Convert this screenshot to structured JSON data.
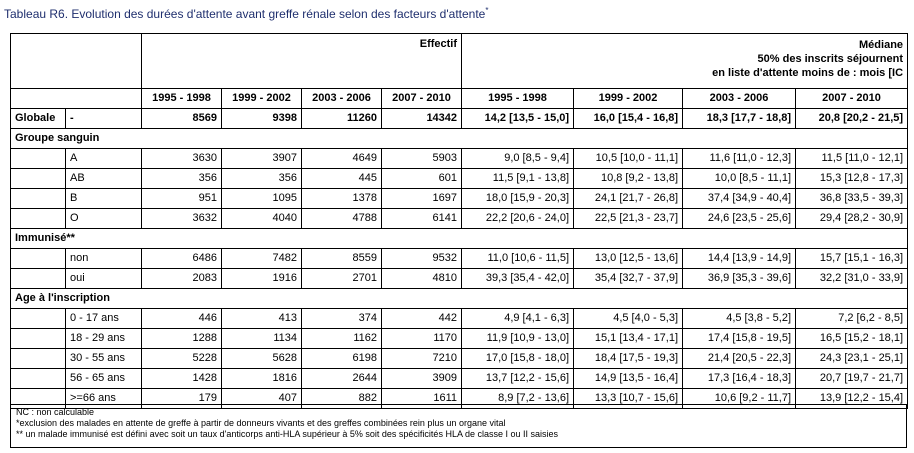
{
  "title": "Tableau R6. Evolution des durées d'attente avant greffe rénale selon des facteurs d'attente",
  "title_sup": "*",
  "header": {
    "effectif": "Effectif",
    "mediane": [
      "Médiane",
      "50% des inscrits séjournent",
      "en liste d'attente moins de : mois [IC"
    ],
    "periods": [
      "1995 - 1998",
      "1999 - 2002",
      "2003 - 2006",
      "2007 - 2010"
    ]
  },
  "globale": {
    "label": "Globale",
    "sub": "-",
    "eff": [
      "8569",
      "9398",
      "11260",
      "14342"
    ],
    "med": [
      "14,2 [13,5 - 15,0]",
      "16,0 [15,4 - 16,8]",
      "18,3 [17,7 - 18,8]",
      "20,8 [20,2 - 21,5]"
    ]
  },
  "sections": [
    {
      "label": "Groupe sanguin",
      "rows": [
        {
          "label": "A",
          "eff": [
            "3630",
            "3907",
            "4649",
            "5903"
          ],
          "med": [
            "9,0 [8,5 - 9,4]",
            "10,5 [10,0 - 11,1]",
            "11,6 [11,0 - 12,3]",
            "11,5 [11,0 - 12,1]"
          ]
        },
        {
          "label": "AB",
          "eff": [
            "356",
            "356",
            "445",
            "601"
          ],
          "med": [
            "11,5 [9,1 - 13,8]",
            "10,8 [9,2 - 13,8]",
            "10,0 [8,5 - 11,1]",
            "15,3 [12,8 - 17,3]"
          ]
        },
        {
          "label": "B",
          "eff": [
            "951",
            "1095",
            "1378",
            "1697"
          ],
          "med": [
            "18,0 [15,9 - 20,3]",
            "24,1 [21,7 - 26,8]",
            "37,4 [34,9 - 40,4]",
            "36,8 [33,5 - 39,3]"
          ]
        },
        {
          "label": "O",
          "eff": [
            "3632",
            "4040",
            "4788",
            "6141"
          ],
          "med": [
            "22,2 [20,6 - 24,0]",
            "22,5 [21,3 - 23,7]",
            "24,6 [23,5 - 25,6]",
            "29,4 [28,2 - 30,9]"
          ]
        }
      ]
    },
    {
      "label": "Immunisé**",
      "rows": [
        {
          "label": "non",
          "eff": [
            "6486",
            "7482",
            "8559",
            "9532"
          ],
          "med": [
            "11,0 [10,6 - 11,5]",
            "13,0 [12,5 - 13,6]",
            "14,4 [13,9 - 14,9]",
            "15,7 [15,1 - 16,3]"
          ]
        },
        {
          "label": "oui",
          "eff": [
            "2083",
            "1916",
            "2701",
            "4810"
          ],
          "med": [
            "39,3 [35,4 - 42,0]",
            "35,4 [32,7 - 37,9]",
            "36,9 [35,3 - 39,6]",
            "32,2 [31,0 - 33,9]"
          ]
        }
      ]
    },
    {
      "label": "Age à l'inscription",
      "rows": [
        {
          "label": "0 - 17 ans",
          "eff": [
            "446",
            "413",
            "374",
            "442"
          ],
          "med": [
            "4,9 [4,1 - 6,3]",
            "4,5 [4,0 - 5,3]",
            "4,5 [3,8 - 5,2]",
            "7,2 [6,2 - 8,5]"
          ]
        },
        {
          "label": "18 - 29 ans",
          "eff": [
            "1288",
            "1134",
            "1162",
            "1170"
          ],
          "med": [
            "11,9 [10,9 - 13,0]",
            "15,1 [13,4 - 17,1]",
            "17,4 [15,8 - 19,5]",
            "16,5 [15,2 - 18,1]"
          ]
        },
        {
          "label": "30 - 55 ans",
          "eff": [
            "5228",
            "5628",
            "6198",
            "7210"
          ],
          "med": [
            "17,0 [15,8 - 18,0]",
            "18,4 [17,5 - 19,3]",
            "21,4 [20,5 - 22,3]",
            "24,3 [23,1 - 25,1]"
          ]
        },
        {
          "label": "56 - 65 ans",
          "eff": [
            "1428",
            "1816",
            "2644",
            "3909"
          ],
          "med": [
            "13,7 [12,2 - 15,6]",
            "14,9 [13,5 - 16,4]",
            "17,3 [16,4 - 18,3]",
            "20,7 [19,7 - 21,7]"
          ]
        },
        {
          "label": ">=66 ans",
          "eff": [
            "179",
            "407",
            "882",
            "1611"
          ],
          "med": [
            "8,9 [7,2 - 13,6]",
            "13,3 [10,7 - 15,6]",
            "10,6 [9,2 - 11,7]",
            "13,9 [12,2 - 15,4]"
          ]
        }
      ]
    }
  ],
  "notes": [
    "NC : non calculable",
    "*exclusion des malades en attente de greffe à partir de donneurs vivants et des greffes combinées rein plus un organe vital",
    "** un malade immunisé est défini avec soit un taux d'anticorps anti-HLA supérieur à 5% soit des spécificités HLA de classe I ou II saisies"
  ]
}
